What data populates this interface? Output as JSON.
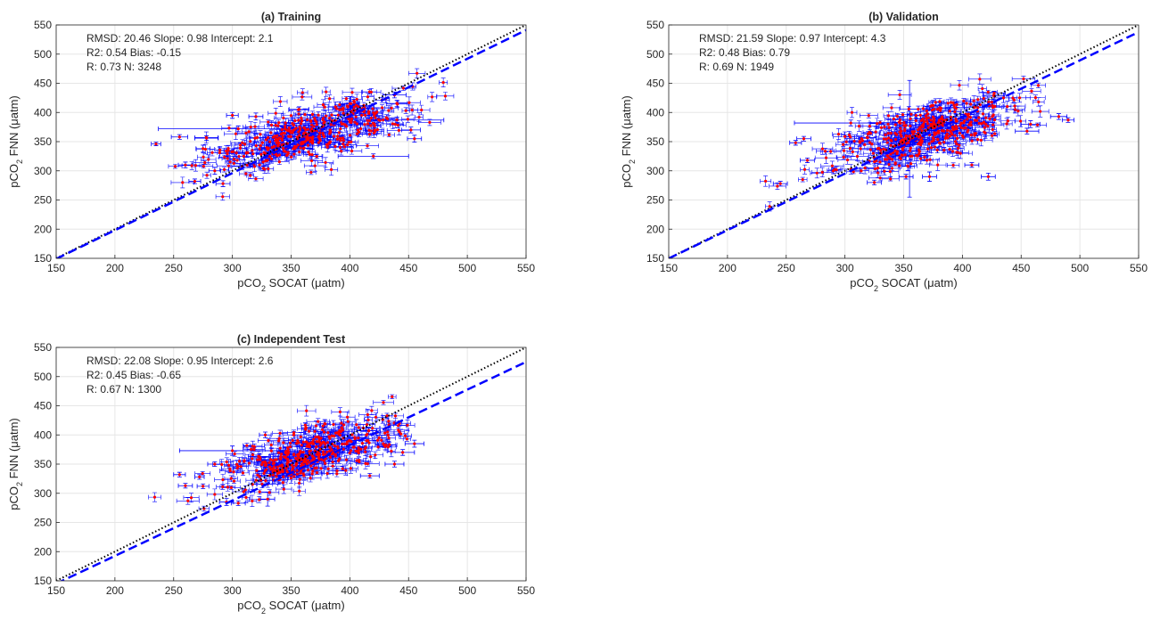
{
  "figure": {
    "ylabel": "pCO2 FNN (μatm)",
    "xlabel": "pCO2 SOCAT (μatm)"
  },
  "chart_data": [
    {
      "type": "scatter",
      "title": "(a) Training",
      "xlabel": "pCO2 SOCAT (μatm)",
      "ylabel": "pCO2 FNN (μatm)",
      "xlim": [
        150,
        550
      ],
      "ylim": [
        150,
        550
      ],
      "xticks": [
        150,
        200,
        250,
        300,
        350,
        400,
        450,
        500,
        550
      ],
      "yticks": [
        150,
        200,
        250,
        300,
        350,
        400,
        450,
        500,
        550
      ],
      "grid": true,
      "stats": [
        "RMSD: 20.46  Slope: 0.98  Intercept: 2.1",
        "R2: 0.54  Bias: -0.15",
        "R: 0.73 N: 3248"
      ],
      "n_points": 3248,
      "fit_line": {
        "slope": 0.98,
        "intercept": 2.1,
        "color": "#0000ff",
        "style": "dashed"
      },
      "identity_line": {
        "color": "#000000",
        "style": "dotted"
      },
      "marker_color": "#ff0000",
      "errorbar_color": "#0000ff",
      "cloud": {
        "x_center": 365,
        "x_spread": 42,
        "fit_slope": 0.55,
        "y_spread": 24
      },
      "points": [
        {
          "x": 260,
          "y": 310,
          "ex": 6,
          "ey": 5
        },
        {
          "x": 268,
          "y": 282,
          "ex": 5,
          "ey": 4
        },
        {
          "x": 255,
          "y": 358,
          "ex": 7,
          "ey": 4
        },
        {
          "x": 275,
          "y": 338,
          "ex": 6,
          "ey": 6
        },
        {
          "x": 285,
          "y": 300,
          "ex": 5,
          "ey": 6
        },
        {
          "x": 292,
          "y": 278,
          "ex": 6,
          "ey": 5
        },
        {
          "x": 320,
          "y": 393,
          "ex": 6,
          "ey": 6
        },
        {
          "x": 300,
          "y": 395,
          "ex": 5,
          "ey": 5
        },
        {
          "x": 235,
          "y": 346,
          "ex": 4,
          "ey": 3
        },
        {
          "x": 305,
          "y": 372,
          "ex": 68,
          "ey": 5
        },
        {
          "x": 440,
          "y": 387,
          "ex": 40,
          "ey": 5
        },
        {
          "x": 330,
          "y": 338,
          "ex": 5,
          "ey": 18
        },
        {
          "x": 420,
          "y": 325,
          "ex": 30,
          "ey": 4
        },
        {
          "x": 452,
          "y": 370,
          "ex": 8,
          "ey": 5
        },
        {
          "x": 455,
          "y": 355,
          "ex": 6,
          "ey": 6
        },
        {
          "x": 400,
          "y": 415,
          "ex": 8,
          "ey": 12
        },
        {
          "x": 438,
          "y": 430,
          "ex": 10,
          "ey": 5
        },
        {
          "x": 278,
          "y": 356,
          "ex": 10,
          "ey": 4
        }
      ]
    },
    {
      "type": "scatter",
      "title": "(b) Validation",
      "xlabel": "pCO2 SOCAT (μatm)",
      "ylabel": "pCO2 FNN (μatm)",
      "xlim": [
        150,
        550
      ],
      "ylim": [
        150,
        550
      ],
      "xticks": [
        150,
        200,
        250,
        300,
        350,
        400,
        450,
        500,
        550
      ],
      "yticks": [
        150,
        200,
        250,
        300,
        350,
        400,
        450,
        500,
        550
      ],
      "grid": true,
      "stats": [
        "RMSD: 21.59  Slope: 0.97  Intercept: 4.3",
        "R2: 0.48  Bias: 0.79",
        "R: 0.69 N: 1949"
      ],
      "n_points": 1949,
      "fit_line": {
        "slope": 0.97,
        "intercept": 4.3,
        "color": "#0000ff",
        "style": "dashed"
      },
      "identity_line": {
        "color": "#000000",
        "style": "dotted"
      },
      "marker_color": "#ff0000",
      "errorbar_color": "#0000ff",
      "cloud": {
        "x_center": 365,
        "x_spread": 40,
        "fit_slope": 0.55,
        "y_spread": 24
      },
      "points": [
        {
          "x": 245,
          "y": 278,
          "ex": 6,
          "ey": 4
        },
        {
          "x": 258,
          "y": 348,
          "ex": 5,
          "ey": 4
        },
        {
          "x": 265,
          "y": 355,
          "ex": 6,
          "ey": 4
        },
        {
          "x": 268,
          "y": 318,
          "ex": 6,
          "ey": 4
        },
        {
          "x": 290,
          "y": 300,
          "ex": 5,
          "ey": 5
        },
        {
          "x": 305,
          "y": 382,
          "ex": 48,
          "ey": 5
        },
        {
          "x": 355,
          "y": 355,
          "ex": 5,
          "ey": 100
        },
        {
          "x": 325,
          "y": 280,
          "ex": 6,
          "ey": 4
        },
        {
          "x": 352,
          "y": 290,
          "ex": 6,
          "ey": 4
        },
        {
          "x": 372,
          "y": 290,
          "ex": 6,
          "ey": 8
        },
        {
          "x": 408,
          "y": 310,
          "ex": 6,
          "ey": 4
        },
        {
          "x": 422,
          "y": 290,
          "ex": 6,
          "ey": 6
        },
        {
          "x": 458,
          "y": 380,
          "ex": 8,
          "ey": 6
        },
        {
          "x": 455,
          "y": 368,
          "ex": 10,
          "ey": 5
        },
        {
          "x": 482,
          "y": 393,
          "ex": 7,
          "ey": 5
        },
        {
          "x": 490,
          "y": 387,
          "ex": 5,
          "ey": 4
        },
        {
          "x": 445,
          "y": 405,
          "ex": 8,
          "ey": 6
        },
        {
          "x": 435,
          "y": 425,
          "ex": 8,
          "ey": 8
        }
      ]
    },
    {
      "type": "scatter",
      "title": "(c) Independent Test",
      "xlabel": "pCO2 SOCAT (μatm)",
      "ylabel": "pCO2 FNN (μatm)",
      "xlim": [
        150,
        550
      ],
      "ylim": [
        150,
        550
      ],
      "xticks": [
        150,
        200,
        250,
        300,
        350,
        400,
        450,
        500,
        550
      ],
      "yticks": [
        150,
        200,
        250,
        300,
        350,
        400,
        450,
        500,
        550
      ],
      "grid": true,
      "stats": [
        "RMSD: 22.08  Slope: 0.95  Intercept: 2.6",
        "R2: 0.45  Bias: -0.65",
        "R: 0.67 N: 1300"
      ],
      "n_points": 1300,
      "fit_line": {
        "slope": 0.95,
        "intercept": 2.6,
        "color": "#0000ff",
        "style": "dashed"
      },
      "identity_line": {
        "color": "#000000",
        "style": "dotted"
      },
      "marker_color": "#ff0000",
      "errorbar_color": "#0000ff",
      "cloud": {
        "x_center": 365,
        "x_spread": 38,
        "fit_slope": 0.55,
        "y_spread": 24
      },
      "points": [
        {
          "x": 255,
          "y": 332,
          "ex": 5,
          "ey": 4
        },
        {
          "x": 260,
          "y": 313,
          "ex": 6,
          "ey": 4
        },
        {
          "x": 275,
          "y": 312,
          "ex": 5,
          "ey": 4
        },
        {
          "x": 272,
          "y": 328,
          "ex": 4,
          "ey": 4
        },
        {
          "x": 285,
          "y": 350,
          "ex": 6,
          "ey": 4
        },
        {
          "x": 295,
          "y": 285,
          "ex": 6,
          "ey": 6
        },
        {
          "x": 305,
          "y": 283,
          "ex": 6,
          "ey": 4
        },
        {
          "x": 300,
          "y": 373,
          "ex": 45,
          "ey": 8
        },
        {
          "x": 330,
          "y": 290,
          "ex": 6,
          "ey": 12
        },
        {
          "x": 328,
          "y": 400,
          "ex": 5,
          "ey": 5
        },
        {
          "x": 417,
          "y": 330,
          "ex": 8,
          "ey": 4
        },
        {
          "x": 438,
          "y": 350,
          "ex": 8,
          "ey": 5
        },
        {
          "x": 455,
          "y": 385,
          "ex": 8,
          "ey": 6
        },
        {
          "x": 445,
          "y": 370,
          "ex": 10,
          "ey": 5
        }
      ]
    }
  ]
}
